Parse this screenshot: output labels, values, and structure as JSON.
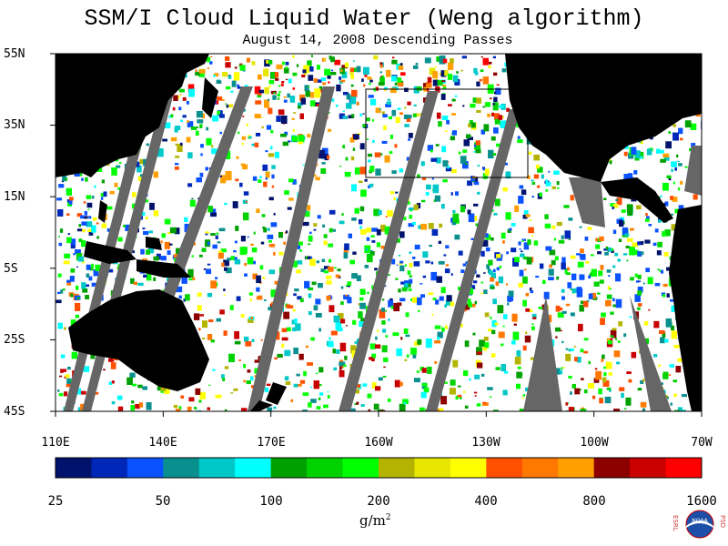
{
  "title": "SSM/I Cloud Liquid Water (Weng algorithm)",
  "subtitle": "August 14, 2008  Descending Passes",
  "lat_labels": [
    "55N",
    "35N",
    "15N",
    "5S",
    "25S",
    "45S"
  ],
  "lon_labels": [
    "110E",
    "140E",
    "170E",
    "160W",
    "130W",
    "100W",
    "70W"
  ],
  "colorbar": {
    "colors": [
      "#00126b",
      "#0028b8",
      "#0a52ff",
      "#0a8f8f",
      "#00c8c8",
      "#00ffff",
      "#00a000",
      "#00d200",
      "#00ff00",
      "#b4b400",
      "#e6e600",
      "#ffff00",
      "#ff5000",
      "#ff7800",
      "#ffa000",
      "#8c0000",
      "#c80000",
      "#ff0000"
    ],
    "tick_labels": [
      "25",
      "50",
      "100",
      "200",
      "400",
      "800",
      "1600"
    ]
  },
  "units": "g/m",
  "units_sup": "2",
  "logo": {
    "org_left": "ESRL",
    "org_right": "PSD",
    "center": "NOAA"
  },
  "colors": {
    "land": "#000000",
    "nodata": "#666666",
    "ocean_clear": "#ffffff"
  }
}
